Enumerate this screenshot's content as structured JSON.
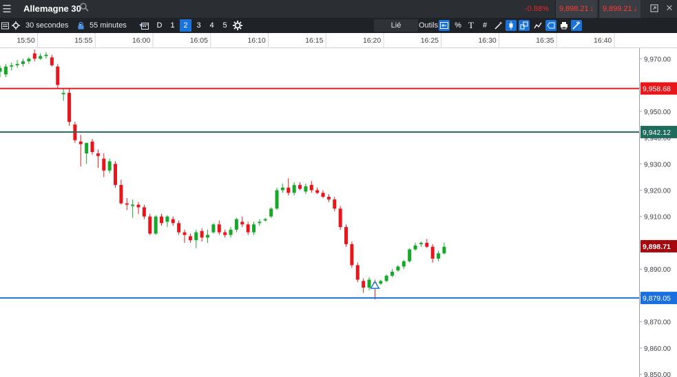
{
  "window": {
    "title": "Allemagne 30",
    "change_pct": "-0.88%",
    "sell_price": "9,898.21",
    "buy_price": "9,899.21",
    "colors": {
      "down": "#ff3b30"
    }
  },
  "toolbar": {
    "interval": "30 secondes",
    "range": "55 minutes",
    "periods": [
      "D",
      "1",
      "2",
      "3",
      "4",
      "5"
    ],
    "active_period": "2",
    "link_label": "Lié",
    "tools_label": "Outils",
    "percent_label": "%",
    "text_tool_label": "T"
  },
  "chart_data": {
    "type": "candlestick",
    "x_tick_labels": [
      "15:50",
      "15:55",
      "16:00",
      "16:05",
      "16:10",
      "16:15",
      "16:20",
      "16:25",
      "16:30",
      "16:35",
      "16:40"
    ],
    "x_tick_minutes": [
      950,
      955,
      960,
      965,
      970,
      975,
      980,
      985,
      990,
      995,
      1000
    ],
    "xlim_minutes": [
      946.75,
      1002.15
    ],
    "y_tick_labels": [
      "9,970.00",
      "9,960.00",
      "9,950.00",
      "9,940.00",
      "9,930.00",
      "9,920.00",
      "9,910.00",
      "9,900.00",
      "9,890.00",
      "9,880.00",
      "9,870.00",
      "9,860.00",
      "9,850.00"
    ],
    "y_tick_values": [
      9970,
      9960,
      9950,
      9940,
      9930,
      9920,
      9910,
      9900,
      9890,
      9880,
      9870,
      9860,
      9850
    ],
    "ylim": [
      9849,
      9974
    ],
    "grid": false,
    "colors": {
      "up": "#16a829",
      "down": "#e8161b"
    },
    "candles": [
      [
        946.75,
        9965.0,
        9967.5,
        9963.0,
        9966.5
      ],
      [
        947.25,
        9964.0,
        9968.0,
        9963.0,
        9967.0
      ],
      [
        947.75,
        9967.0,
        9968.5,
        9965.5,
        9967.5
      ],
      [
        948.25,
        9967.5,
        9969.5,
        9966.5,
        9968.0
      ],
      [
        948.75,
        9968.0,
        9970.0,
        9967.0,
        9969.0
      ],
      [
        949.25,
        9969.0,
        9970.5,
        9968.0,
        9970.0
      ],
      [
        949.75,
        9972.0,
        9973.5,
        9969.0,
        9970.0
      ],
      [
        950.25,
        9970.0,
        9972.0,
        9969.5,
        9971.0
      ],
      [
        950.75,
        9971.0,
        9972.5,
        9970.0,
        9971.5
      ],
      [
        951.25,
        9970.5,
        9971.5,
        9967.0,
        9967.5
      ],
      [
        951.75,
        9967.0,
        9968.0,
        9958.5,
        9960.0
      ],
      [
        952.25,
        9956.5,
        9958.5,
        9954.0,
        9957.0
      ],
      [
        952.75,
        9957.0,
        9958.5,
        9944.5,
        9946.0
      ],
      [
        953.25,
        9945.0,
        9946.0,
        9938.0,
        9939.0
      ],
      [
        953.75,
        9938.5,
        9941.0,
        9929.0,
        9937.5
      ],
      [
        954.25,
        9934.0,
        9937.0,
        9930.0,
        9938.0
      ],
      [
        954.75,
        9938.5,
        9939.5,
        9933.5,
        9934.5
      ],
      [
        955.25,
        9934.0,
        9935.5,
        9928.5,
        9933.0
      ],
      [
        955.75,
        9932.0,
        9934.0,
        9925.0,
        9927.5
      ],
      [
        956.25,
        9927.5,
        9932.0,
        9926.5,
        9931.0
      ],
      [
        956.75,
        9930.0,
        9931.0,
        9921.0,
        9922.0
      ],
      [
        957.25,
        9922.0,
        9924.0,
        9914.5,
        9915.0
      ],
      [
        957.75,
        9915.0,
        9917.0,
        9912.5,
        9914.5
      ],
      [
        958.25,
        9914.0,
        9916.5,
        9909.5,
        9914.5
      ],
      [
        958.75,
        9914.5,
        9915.5,
        9911.0,
        9913.5
      ],
      [
        959.25,
        9913.5,
        9914.5,
        9909.0,
        9910.0
      ],
      [
        959.75,
        9910.0,
        9911.0,
        9903.0,
        9903.5
      ],
      [
        960.25,
        9903.5,
        9910.5,
        9903.0,
        9910.0
      ],
      [
        960.75,
        9910.0,
        9911.0,
        9906.5,
        9907.5
      ],
      [
        961.25,
        9908.0,
        9910.5,
        9906.0,
        9910.0
      ],
      [
        961.75,
        9909.0,
        9910.0,
        9906.5,
        9907.5
      ],
      [
        962.25,
        9907.5,
        9908.5,
        9903.0,
        9904.0
      ],
      [
        962.75,
        9904.0,
        9905.0,
        9900.0,
        9903.0
      ],
      [
        963.25,
        9902.5,
        9903.5,
        9900.0,
        9901.0
      ],
      [
        963.75,
        9901.0,
        9905.0,
        9898.0,
        9904.0
      ],
      [
        964.25,
        9904.5,
        9905.5,
        9900.5,
        9902.0
      ],
      [
        964.75,
        9902.0,
        9905.0,
        9900.0,
        9903.0
      ],
      [
        965.25,
        9904.0,
        9907.5,
        9903.5,
        9907.0
      ],
      [
        965.75,
        9907.0,
        9908.5,
        9903.0,
        9904.0
      ],
      [
        966.25,
        9904.0,
        9905.0,
        9902.0,
        9903.0
      ],
      [
        966.75,
        9903.0,
        9906.0,
        9902.0,
        9905.0
      ],
      [
        967.25,
        9905.0,
        9909.5,
        9904.0,
        9909.0
      ],
      [
        967.75,
        9908.0,
        9910.0,
        9906.0,
        9907.0
      ],
      [
        968.25,
        9907.0,
        9908.0,
        9903.0,
        9904.0
      ],
      [
        968.75,
        9904.0,
        9908.0,
        9903.0,
        9907.0
      ],
      [
        969.25,
        9907.5,
        9909.0,
        9906.5,
        9908.0
      ],
      [
        969.75,
        9908.5,
        9909.5,
        9908.0,
        9909.0
      ],
      [
        970.25,
        9910.0,
        9913.5,
        9909.5,
        9913.0
      ],
      [
        970.75,
        9913.0,
        9921.0,
        9912.5,
        9920.0
      ],
      [
        971.25,
        9920.0,
        9922.5,
        9919.0,
        9921.0
      ],
      [
        971.75,
        9921.0,
        9924.5,
        9918.0,
        9919.0
      ],
      [
        972.25,
        9919.0,
        9923.0,
        9918.0,
        9922.0
      ],
      [
        972.75,
        9922.0,
        9923.0,
        9920.0,
        9920.5
      ],
      [
        973.25,
        9919.5,
        9922.5,
        9918.5,
        9921.5
      ],
      [
        973.75,
        9922.0,
        9923.5,
        9919.0,
        9920.0
      ],
      [
        974.25,
        9920.0,
        9921.0,
        9918.5,
        9919.0
      ],
      [
        974.75,
        9919.0,
        9920.0,
        9917.0,
        9917.5
      ],
      [
        975.25,
        9917.5,
        9918.5,
        9915.5,
        9916.5
      ],
      [
        975.75,
        9916.5,
        9917.5,
        9912.0,
        9913.0
      ],
      [
        976.25,
        9913.0,
        9914.0,
        9905.0,
        9906.0
      ],
      [
        976.75,
        9906.0,
        9907.0,
        9898.5,
        9899.5
      ],
      [
        977.25,
        9899.5,
        9900.5,
        9890.5,
        9891.5
      ],
      [
        977.75,
        9891.5,
        9892.5,
        9885.0,
        9886.0
      ],
      [
        978.25,
        9885.5,
        9886.5,
        9881.0,
        9883.0
      ],
      [
        978.75,
        9883.0,
        9887.0,
        9882.0,
        9886.0
      ],
      [
        979.25,
        9885.0,
        9886.0,
        9878.5,
        9884.0
      ],
      [
        979.75,
        9884.5,
        9886.0,
        9884.0,
        9885.5
      ],
      [
        980.25,
        9885.5,
        9888.0,
        9885.0,
        9887.5
      ],
      [
        980.75,
        9887.5,
        9890.0,
        9887.0,
        9889.0
      ],
      [
        981.25,
        9889.5,
        9891.5,
        9889.0,
        9891.0
      ],
      [
        981.75,
        9891.0,
        9893.5,
        9890.0,
        9893.0
      ],
      [
        982.25,
        9893.0,
        9898.0,
        9892.5,
        9897.5
      ],
      [
        982.75,
        9897.5,
        9900.0,
        9897.0,
        9899.0
      ],
      [
        983.25,
        9899.5,
        9900.5,
        9898.5,
        9900.0
      ],
      [
        983.75,
        9900.0,
        9901.5,
        9898.0,
        9898.5
      ],
      [
        984.25,
        9898.5,
        9899.5,
        9892.5,
        9894.0
      ],
      [
        984.75,
        9894.0,
        9897.0,
        9893.0,
        9896.0
      ],
      [
        985.25,
        9896.0,
        9900.0,
        9895.5,
        9898.5
      ]
    ],
    "horizontal_lines": [
      {
        "value": 9958.68,
        "label": "9,958.68",
        "color": "#e8161b",
        "text_color": "#ffffff"
      },
      {
        "value": 9942.12,
        "label": "9,942.12",
        "color": "#1f6b5c",
        "text_color": "#ffffff"
      },
      {
        "value": 9879.05,
        "label": "9,879.05",
        "color": "#1a6fe0",
        "text_color": "#ffffff"
      }
    ],
    "current_price": {
      "value": 9898.71,
      "label": "9,898.71",
      "color": "#a6090d"
    },
    "marker": {
      "x": 979.25,
      "value": 9884.0,
      "color": "#1a73d9"
    }
  }
}
